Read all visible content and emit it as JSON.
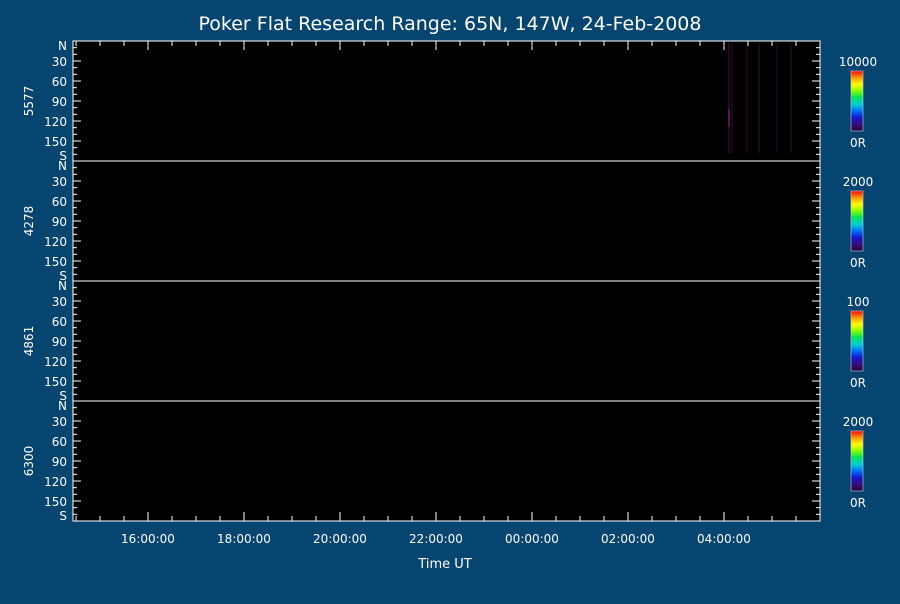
{
  "chart_data": {
    "type": "heatmap",
    "title": "Poker Flat Research Range: 65N, 147W, 24-Feb-2008",
    "xlabel": "Time UT",
    "x_ticks": [
      "16:00:00",
      "18:00:00",
      "20:00:00",
      "22:00:00",
      "00:00:00",
      "02:00:00",
      "04:00:00"
    ],
    "y_ticks": [
      "N",
      "30",
      "60",
      "90",
      "120",
      "150",
      "S"
    ],
    "panels": [
      {
        "name": "5577",
        "colorbar_max": "10000",
        "colorbar_min": "0R"
      },
      {
        "name": "4278",
        "colorbar_max": "2000",
        "colorbar_min": "0R"
      },
      {
        "name": "4861",
        "colorbar_max": "100",
        "colorbar_min": "0R"
      },
      {
        "name": "6300",
        "colorbar_max": "2000",
        "colorbar_min": "0R"
      }
    ],
    "colors": {
      "background": "#06456f",
      "plot_background": "#000000",
      "axis": "#ffffff",
      "colormap": [
        "#2a0040",
        "#3b1080",
        "#1515d0",
        "#0070ff",
        "#00d0d0",
        "#00e060",
        "#80ff00",
        "#ffff00",
        "#ff9900",
        "#ff0000"
      ]
    }
  }
}
